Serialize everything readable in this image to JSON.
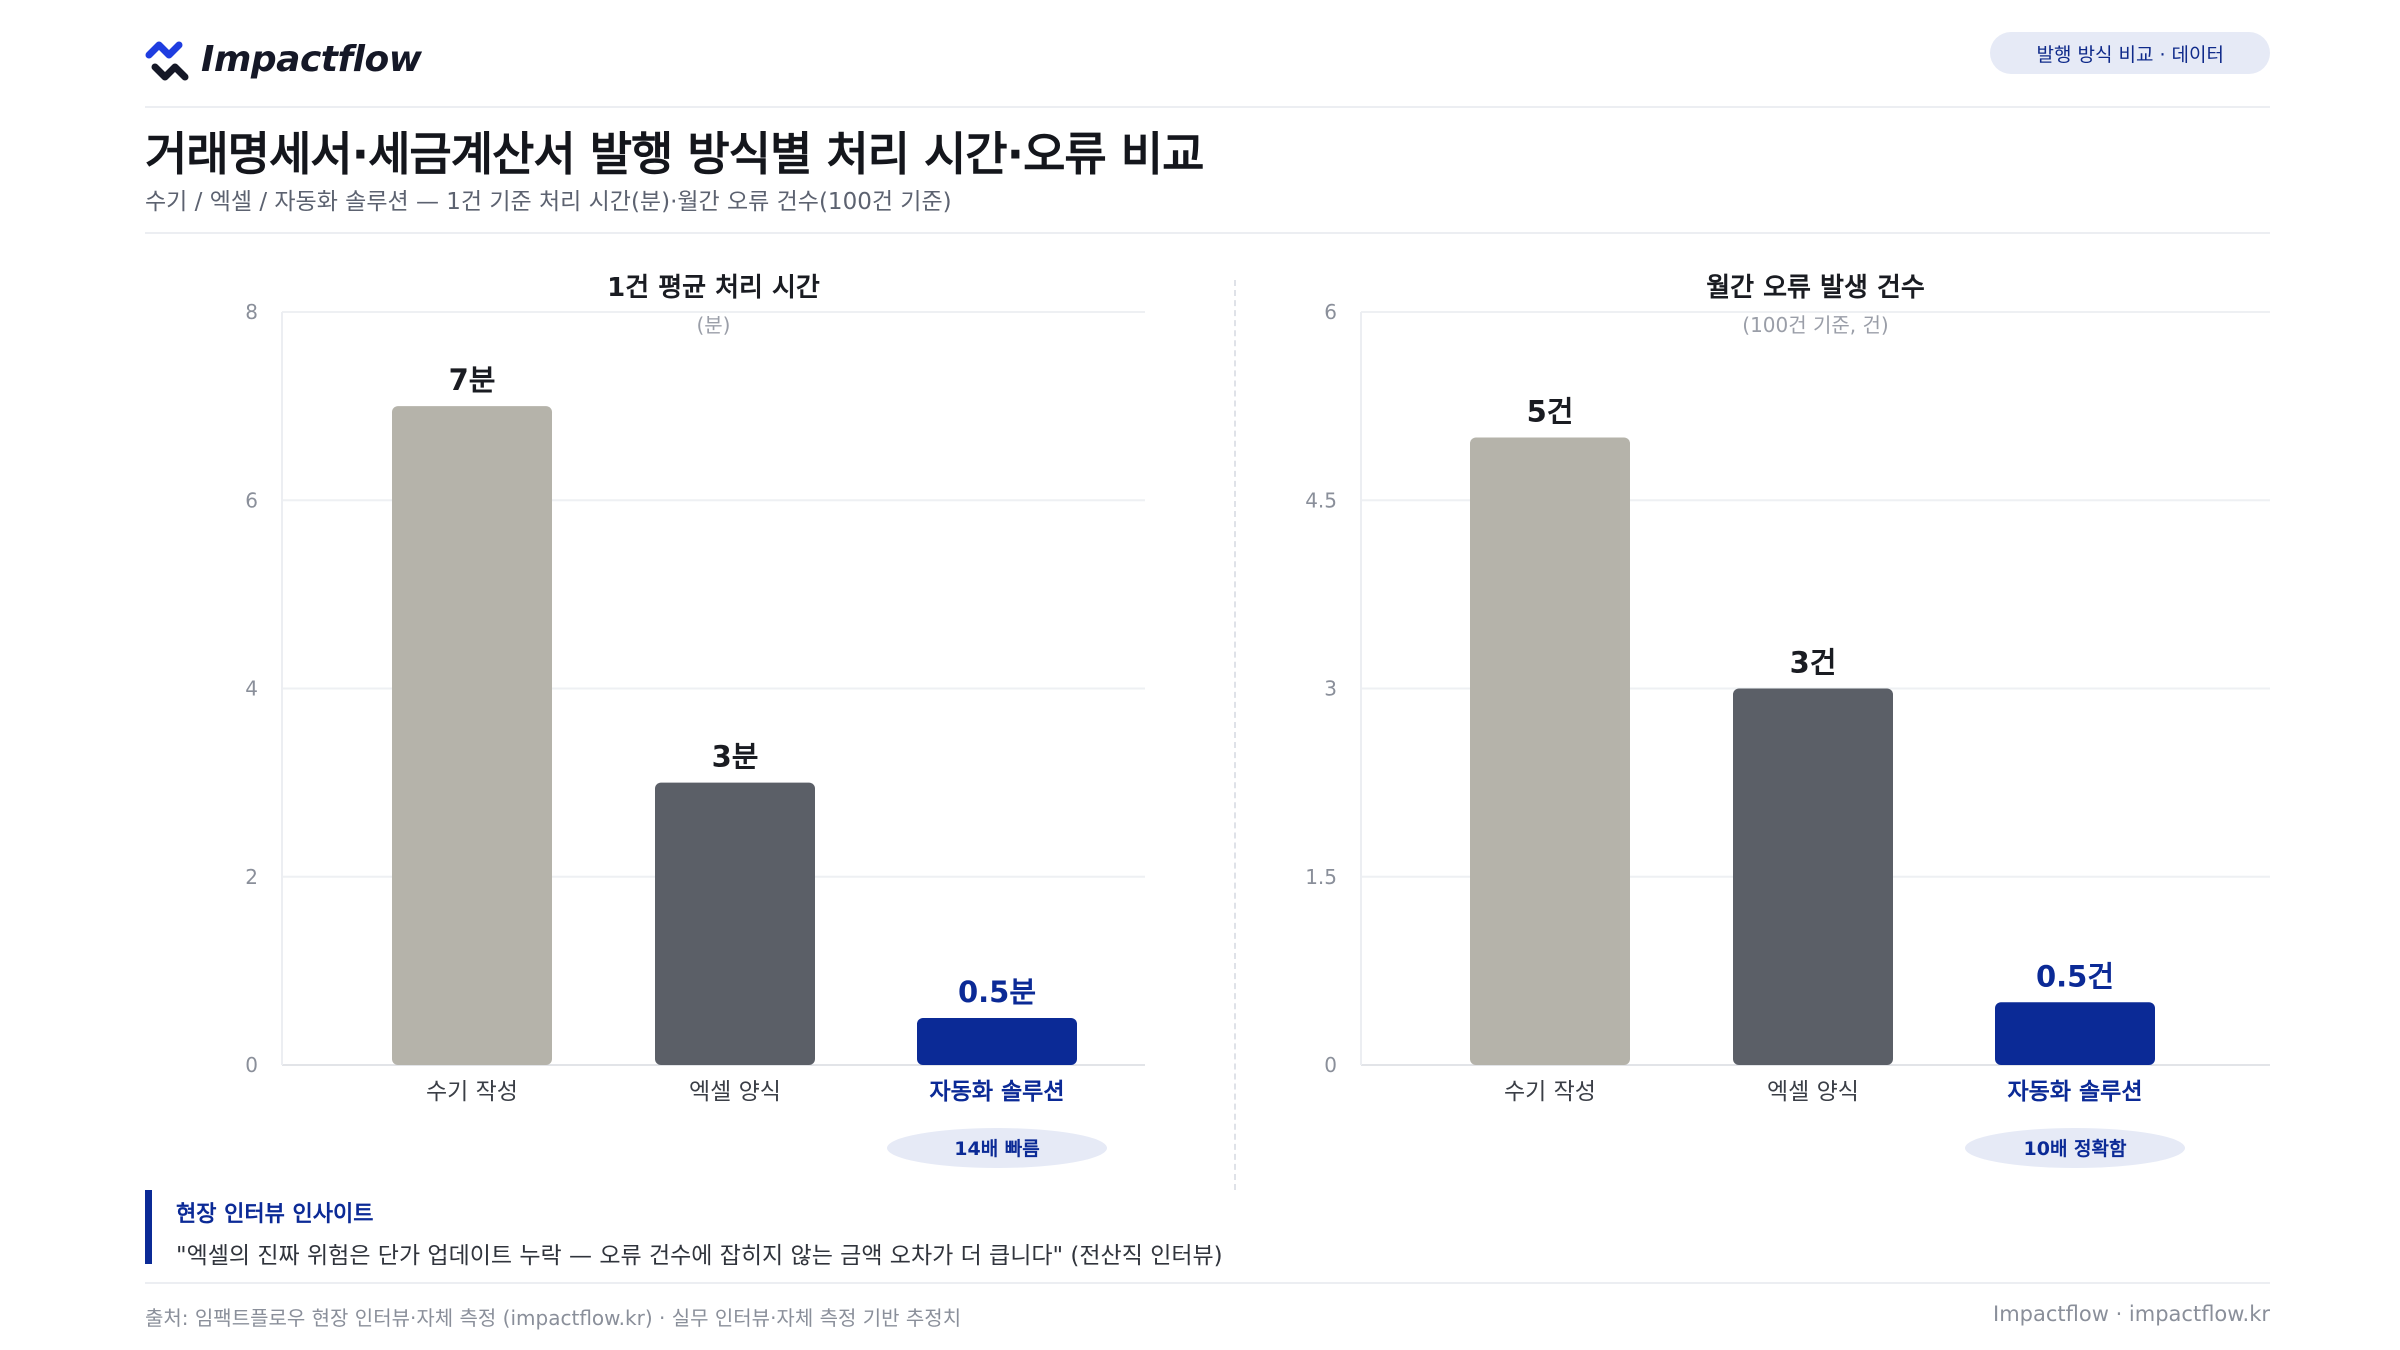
{
  "brand": {
    "name": "Impactflow",
    "accent": "#1f3de0"
  },
  "header": {
    "badge": "발행 방식 비교 · 데이터"
  },
  "title": "거래명세서·세금계산서 발행 방식별 처리 시간·오류 비교",
  "subtitle": "수기 / 엑셀 / 자동화 솔루션 — 1건 기준 처리 시간(분)·월간 오류 건수(100건 기준)",
  "chart_data": [
    {
      "type": "bar",
      "title": "1건 평균 처리 시간",
      "unit_note": "(분)",
      "categories": [
        "수기 작성",
        "엑셀 양식",
        "자동화 솔루션"
      ],
      "values": [
        7,
        3,
        0.5
      ],
      "value_labels": [
        "7분",
        "3분",
        "0.5분"
      ],
      "colors": [
        "#b5b3aa",
        "#5b5f67",
        "#0b2a96"
      ],
      "ylim": [
        0,
        8
      ],
      "yticks": [
        "0",
        "2",
        "4",
        "6",
        "8"
      ],
      "highlight_badge": "14배 빠름",
      "grid": true
    },
    {
      "type": "bar",
      "title": "월간 오류 발생 건수",
      "unit_note": "(100건 기준, 건)",
      "categories": [
        "수기 작성",
        "엑셀 양식",
        "자동화 솔루션"
      ],
      "values": [
        5,
        3,
        0.5
      ],
      "value_labels": [
        "5건",
        "3건",
        "0.5건"
      ],
      "colors": [
        "#b5b3aa",
        "#5b5f67",
        "#0b2a96"
      ],
      "ylim": [
        0,
        6
      ],
      "yticks": [
        "0",
        "1.5",
        "3",
        "4.5",
        "6"
      ],
      "highlight_badge": "10배 정확함",
      "grid": true
    }
  ],
  "insight": {
    "title": "현장 인터뷰 인사이트",
    "quote": "\"엑셀의 진짜 위험은 단가 업데이트 누락 — 오류 건수에 잡히지 않는 금액 오차가 더 큽니다\" (전산직 인터뷰)"
  },
  "footer": {
    "source": "출처: 임팩트플로우 현장 인터뷰·자체 측정 (impactflow.kr) · 실무 인터뷰·자체 측정 기반 추정치",
    "credit": "Impactflow · impactflow.kr"
  }
}
